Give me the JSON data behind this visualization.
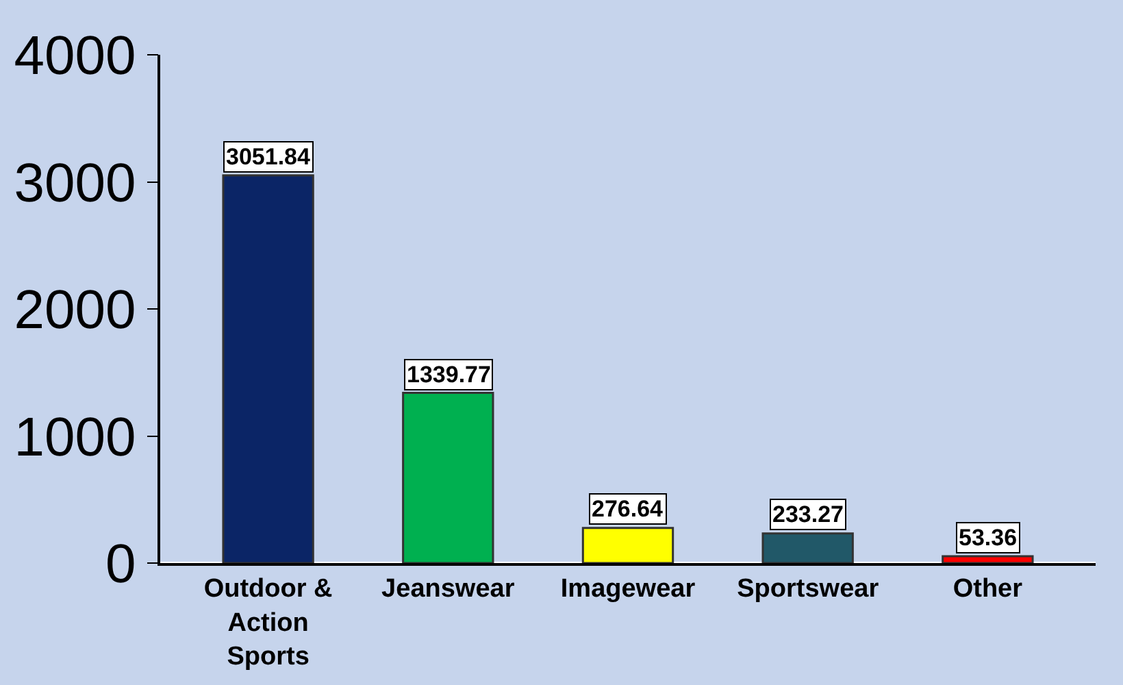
{
  "chart_data": {
    "type": "bar",
    "categories": [
      "Outdoor & Action Sports",
      "Jeanswear",
      "Imagewear",
      "Sportswear",
      "Other"
    ],
    "values": [
      3051.84,
      1339.77,
      276.64,
      233.27,
      53.36
    ],
    "colors": [
      "#0b2566",
      "#00b050",
      "#ffff00",
      "#215868",
      "#ff0000"
    ],
    "ylim": [
      0,
      4000
    ],
    "yticks": [
      0,
      1000,
      2000,
      3000,
      4000
    ],
    "data_labels": true,
    "grid": false,
    "legend": false
  }
}
